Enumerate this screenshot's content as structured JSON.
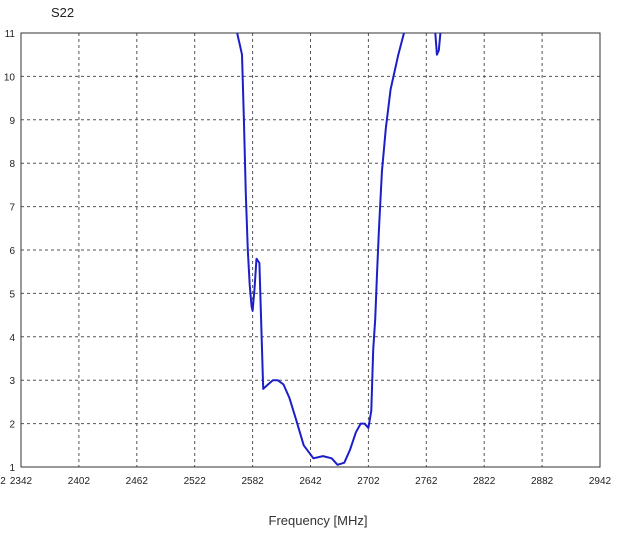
{
  "chart_data": {
    "type": "line",
    "title": "S22",
    "xlabel": "Frequency [MHz]",
    "ylabel": "",
    "xlim": [
      2342,
      2942
    ],
    "ylim": [
      1,
      11
    ],
    "grid": true,
    "x_ticks": [
      2342,
      2402,
      2462,
      2522,
      2582,
      2642,
      2702,
      2762,
      2822,
      2882,
      2942
    ],
    "x_tick_labels": [
      "2342",
      "2402",
      "2462",
      "2522",
      "2582",
      "2642",
      "2702",
      "2762",
      "2822",
      "2882",
      "2942"
    ],
    "y_ticks": [
      1,
      2,
      3,
      4,
      5,
      6,
      7,
      8,
      9,
      10,
      11
    ],
    "y_tick_labels": [
      "1",
      "2",
      "3",
      "4",
      "5",
      "6",
      "7",
      "8",
      "9",
      "10",
      "11"
    ],
    "stray_label": "2",
    "colors": {
      "series": "#1c1fc8",
      "grid": "#555555",
      "frame": "#333333"
    },
    "series": [
      {
        "x": [
          2565,
          2567,
          2569,
          2571,
          2573,
          2575,
          2577,
          2579,
          2581,
          2582,
          2584,
          2586,
          2589,
          2593,
          2598,
          2603,
          2608,
          2614,
          2620,
          2627,
          2635,
          2645,
          2655,
          2664,
          2670,
          2677,
          2683,
          2689,
          2694,
          2698,
          2702,
          2705,
          2707,
          2709,
          2711,
          2713,
          2716,
          2720,
          2725,
          2733,
          2740
        ],
        "y": [
          11.1,
          10.9,
          10.7,
          10.5,
          9.0,
          7.3,
          6.0,
          5.2,
          4.7,
          4.6,
          5.1,
          5.8,
          5.7,
          2.8,
          2.9,
          3.0,
          3.0,
          2.9,
          2.6,
          2.1,
          1.5,
          1.2,
          1.25,
          1.2,
          1.05,
          1.1,
          1.4,
          1.8,
          2.0,
          2.0,
          1.9,
          2.3,
          3.7,
          4.4,
          5.5,
          6.5,
          7.8,
          8.8,
          9.7,
          10.5,
          11.1
        ]
      },
      {
        "x": [
          2771,
          2773,
          2775,
          2777
        ],
        "y": [
          11.1,
          10.5,
          10.6,
          11.1
        ]
      }
    ]
  }
}
